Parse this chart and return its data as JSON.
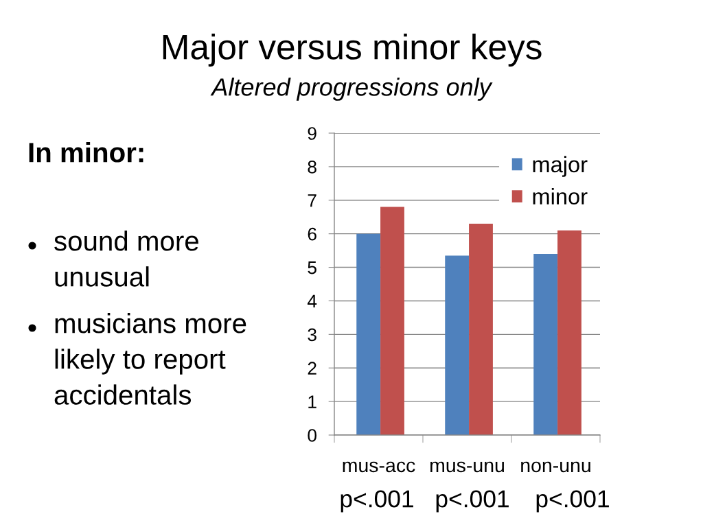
{
  "chart_data": {
    "type": "bar",
    "title": "Major versus minor keys",
    "subtitle": "Altered progressions only",
    "categories": [
      "mus-acc",
      "mus-unu",
      "non-unu"
    ],
    "series": [
      {
        "name": "major",
        "color": "#4f81bd",
        "values": [
          6.0,
          5.35,
          5.4
        ]
      },
      {
        "name": "minor",
        "color": "#c0504d",
        "values": [
          6.8,
          6.3,
          6.1
        ]
      }
    ],
    "ylim": [
      0,
      9
    ],
    "yticks": [
      0,
      1,
      2,
      3,
      4,
      5,
      6,
      7,
      8,
      9
    ],
    "grid": "y",
    "legend": "top right",
    "annotations": [
      "In minor:",
      "sound more unusual",
      "musicians more likely to report accidentals",
      "p<.001",
      "p<.001",
      "p<.001"
    ]
  }
}
